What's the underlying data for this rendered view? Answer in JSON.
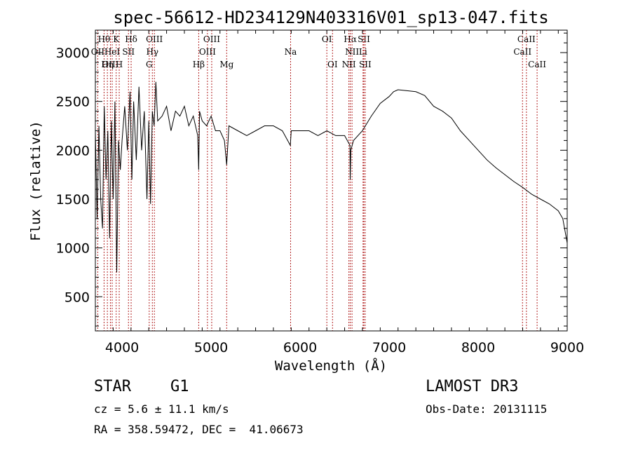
{
  "chart_data": {
    "type": "line",
    "title": "spec-56612-HD234129N403316V01_sp13-047.fits",
    "xlabel": "Wavelength (Å)",
    "ylabel": "Flux (relative)",
    "xlim": [
      3700,
      9000
    ],
    "ylim": [
      150,
      3230
    ],
    "x_ticks": [
      4000,
      5000,
      6000,
      7000,
      8000,
      9000
    ],
    "y_ticks": [
      500,
      1000,
      1500,
      2000,
      2500,
      3000
    ],
    "grid": false,
    "series": [
      {
        "name": "flux",
        "x": [
          3700,
          3720,
          3740,
          3760,
          3780,
          3800,
          3820,
          3840,
          3860,
          3880,
          3900,
          3920,
          3940,
          3960,
          3980,
          4000,
          4030,
          4060,
          4090,
          4110,
          4130,
          4160,
          4190,
          4220,
          4250,
          4280,
          4300,
          4320,
          4340,
          4360,
          4380,
          4400,
          4450,
          4500,
          4550,
          4600,
          4650,
          4700,
          4750,
          4800,
          4850,
          4861,
          4870,
          4900,
          4950,
          5000,
          5050,
          5100,
          5150,
          5175,
          5200,
          5300,
          5400,
          5500,
          5600,
          5700,
          5800,
          5890,
          5900,
          6000,
          6100,
          6200,
          6300,
          6400,
          6500,
          6560,
          6563,
          6570,
          6600,
          6700,
          6800,
          6900,
          7000,
          7050,
          7100,
          7200,
          7300,
          7400,
          7500,
          7600,
          7700,
          7800,
          7900,
          8000,
          8100,
          8200,
          8300,
          8400,
          8500,
          8600,
          8700,
          8800,
          8900,
          8950,
          9000
        ],
        "values": [
          2200,
          1300,
          2250,
          1500,
          1200,
          2450,
          1700,
          2200,
          1100,
          2300,
          1500,
          2500,
          750,
          2100,
          1800,
          2100,
          2450,
          2000,
          2600,
          1700,
          2500,
          1900,
          2650,
          2000,
          2400,
          1500,
          2300,
          1450,
          2400,
          2250,
          2700,
          2300,
          2350,
          2450,
          2200,
          2400,
          2350,
          2450,
          2250,
          2350,
          2150,
          1800,
          2400,
          2300,
          2250,
          2350,
          2200,
          2200,
          2100,
          1850,
          2250,
          2200,
          2150,
          2200,
          2250,
          2250,
          2200,
          2050,
          2200,
          2200,
          2200,
          2150,
          2200,
          2150,
          2150,
          2050,
          1700,
          2000,
          2100,
          2200,
          2350,
          2480,
          2550,
          2600,
          2620,
          2610,
          2600,
          2560,
          2450,
          2400,
          2330,
          2200,
          2100,
          2000,
          1900,
          1820,
          1750,
          1680,
          1620,
          1550,
          1500,
          1450,
          1380,
          1300,
          1050
        ]
      }
    ],
    "spectral_lines": [
      {
        "label": "Hθ",
        "x": 3798,
        "row": 1
      },
      {
        "label": "OII",
        "x": 3727,
        "row": 2
      },
      {
        "label": "OIII",
        "x": 3869,
        "row": 3
      },
      {
        "label": "K",
        "x": 3934,
        "row": 1
      },
      {
        "label": "HeI",
        "x": 3889,
        "row": 2
      },
      {
        "label": "Hη",
        "x": 3835,
        "row": 3
      },
      {
        "label": "SII",
        "x": 4072,
        "row": 2
      },
      {
        "label": "Hδ",
        "x": 4102,
        "row": 1
      },
      {
        "label": "H",
        "x": 3968,
        "row": 3
      },
      {
        "label": "OIII",
        "x": 4363,
        "row": 1
      },
      {
        "label": "Hγ",
        "x": 4340,
        "row": 2
      },
      {
        "label": "G",
        "x": 4305,
        "row": 3
      },
      {
        "label": "Hβ",
        "x": 4861,
        "row": 3
      },
      {
        "label": "OIII",
        "x": 5007,
        "row": 1
      },
      {
        "label": "OIII",
        "x": 4959,
        "row": 2
      },
      {
        "label": "Mg",
        "x": 5175,
        "row": 3
      },
      {
        "label": "Na",
        "x": 5893,
        "row": 2
      },
      {
        "label": "OI",
        "x": 6300,
        "row": 1
      },
      {
        "label": "OI",
        "x": 6364,
        "row": 3
      },
      {
        "label": "Hα",
        "x": 6563,
        "row": 1
      },
      {
        "label": "NII",
        "x": 6583,
        "row": 2
      },
      {
        "label": "NII",
        "x": 6548,
        "row": 3
      },
      {
        "label": "SII",
        "x": 6716,
        "row": 1
      },
      {
        "label": "Li",
        "x": 6707,
        "row": 2
      },
      {
        "label": "SII",
        "x": 6731,
        "row": 3
      },
      {
        "label": "CaII",
        "x": 8542,
        "row": 1
      },
      {
        "label": "CaII",
        "x": 8498,
        "row": 2
      },
      {
        "label": "CaII",
        "x": 8662,
        "row": 3
      }
    ]
  },
  "info": {
    "class": "STAR",
    "subclass": "G1",
    "redshift": "cz = 5.6 ± 11.1 km/s",
    "coords": "RA = 358.59472, DEC =  41.06673",
    "survey": "LAMOST DR3",
    "obs_date": "Obs-Date: 20131115"
  },
  "colors": {
    "line_marker": "#b22222",
    "spectrum": "#000000"
  }
}
